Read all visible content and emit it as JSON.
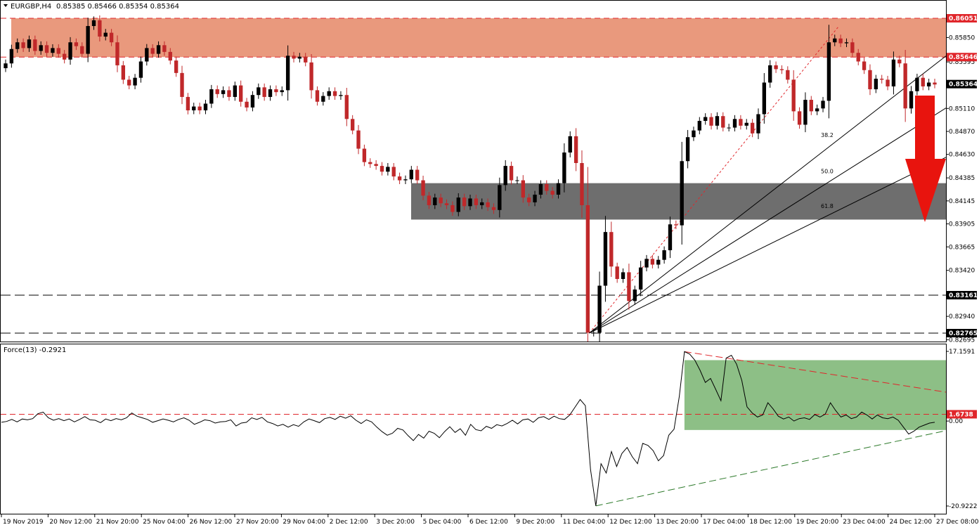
{
  "header": {
    "symbol": "EURGBP,H4",
    "ohlc": "0.85385 0.85466 0.85354 0.85364"
  },
  "indicator": {
    "label": "Force(13) -0.2921"
  },
  "colors": {
    "bull": "#000000",
    "bear": "#c0282a",
    "resistance_zone": "#e9997d",
    "support_zone": "#6e6e6e",
    "force_zone": "#8dbf86",
    "arrow": "#e8140e",
    "red_line": "#e0262b",
    "green_line": "#2d7a2a"
  },
  "chart_data": [
    {
      "type": "candlestick",
      "title": "EURGBP,H4",
      "ylim": [
        0.82695,
        0.863
      ],
      "price_ticks": [
        "0.85850",
        "0.85595",
        "0.85110",
        "0.84870",
        "0.84630",
        "0.84385",
        "0.84145",
        "0.83905",
        "0.83665",
        "0.83420",
        "0.82940",
        "0.82695"
      ],
      "highlighted_levels": [
        {
          "label": "0.86051",
          "value": 0.86051,
          "color": "#e0262b"
        },
        {
          "label": "0.85646",
          "value": 0.85646,
          "color": "#e0262b"
        },
        {
          "label": "0.85364",
          "value": 0.85364,
          "color": "#000000"
        },
        {
          "label": "0.83161",
          "value": 0.83161,
          "color": "#000000"
        },
        {
          "label": "0.82765",
          "value": 0.82765,
          "color": "#000000"
        }
      ],
      "zones": [
        {
          "name": "resistance",
          "from": 0.85646,
          "to": 0.86051
        },
        {
          "name": "support",
          "from": 0.8395,
          "to": 0.8433
        }
      ],
      "fibonacci_fan": [
        {
          "label": "38.2",
          "value": 0.8479
        },
        {
          "label": "50.0",
          "value": 0.8441
        },
        {
          "label": "61.8",
          "value": 0.8405
        }
      ],
      "x_labels": [
        "19 Nov 2019",
        "20 Nov 12:00",
        "21 Nov 20:00",
        "25 Nov 04:00",
        "26 Nov 12:00",
        "27 Nov 20:00",
        "29 Nov 04:00",
        "2 Dec 12:00",
        "3 Dec 20:00",
        "5 Dec 04:00",
        "6 Dec 12:00",
        "9 Dec 20:00",
        "11 Dec 04:00",
        "12 Dec 12:00",
        "13 Dec 20:00",
        "17 Dec 04:00",
        "18 Dec 12:00",
        "19 Dec 20:00",
        "23 Dec 04:00",
        "24 Dec 12:00",
        "27 Dec 08:00"
      ],
      "close": [
        0.8558,
        0.8573,
        0.858,
        0.8574,
        0.8583,
        0.8571,
        0.8577,
        0.8569,
        0.8574,
        0.8568,
        0.8562,
        0.858,
        0.8576,
        0.8568,
        0.8597,
        0.8603,
        0.8586,
        0.859,
        0.858,
        0.8556,
        0.8541,
        0.8535,
        0.8543,
        0.856,
        0.8574,
        0.8568,
        0.8577,
        0.857,
        0.8561,
        0.8548,
        0.8523,
        0.8509,
        0.8513,
        0.8509,
        0.8516,
        0.8531,
        0.8526,
        0.853,
        0.8523,
        0.8535,
        0.8518,
        0.8512,
        0.8525,
        0.8533,
        0.8523,
        0.8531,
        0.8528,
        0.853,
        0.8566,
        0.8563,
        0.8565,
        0.8559,
        0.853,
        0.8518,
        0.8524,
        0.8529,
        0.8524,
        0.8525,
        0.85,
        0.8488,
        0.8469,
        0.8455,
        0.8453,
        0.8451,
        0.8445,
        0.845,
        0.844,
        0.8436,
        0.8437,
        0.8447,
        0.8436,
        0.842,
        0.841,
        0.8418,
        0.8412,
        0.841,
        0.8403,
        0.8418,
        0.8409,
        0.8417,
        0.841,
        0.8413,
        0.8408,
        0.8405,
        0.8431,
        0.8451,
        0.8436,
        0.8436,
        0.8418,
        0.8413,
        0.8421,
        0.8432,
        0.8425,
        0.8421,
        0.8433,
        0.8465,
        0.8482,
        0.8454,
        0.841,
        0.8277,
        0.8277,
        0.8326,
        0.8382,
        0.8346,
        0.8333,
        0.834,
        0.831,
        0.8322,
        0.8345,
        0.8354,
        0.8348,
        0.8353,
        0.8363,
        0.839,
        0.8389,
        0.8456,
        0.8481,
        0.8488,
        0.8498,
        0.8502,
        0.8493,
        0.8503,
        0.8491,
        0.8491,
        0.85,
        0.8493,
        0.8496,
        0.8485,
        0.8505,
        0.8538,
        0.8556,
        0.8552,
        0.8551,
        0.8541,
        0.8508,
        0.8494,
        0.852,
        0.8508,
        0.8511,
        0.8519,
        0.858,
        0.8584,
        0.8579,
        0.858,
        0.8569,
        0.856,
        0.8551,
        0.8531,
        0.8542,
        0.8541,
        0.8534,
        0.8562,
        0.8558,
        0.8511,
        0.8529,
        0.8543,
        0.8534,
        0.8538,
        0.8536
      ]
    },
    {
      "type": "line",
      "title": "Force(13) -0.2921",
      "ylim": [
        -20.9222,
        17.1591
      ],
      "ticks": [
        "17.1591",
        "0.00",
        "-20.9222"
      ],
      "highlighted_levels": [
        {
          "label": "1.6738",
          "value": 1.6738,
          "color": "#e0262b"
        }
      ],
      "zone": {
        "from": -2.2,
        "to": 15.0
      },
      "values": [
        -0.3,
        -0.1,
        0.4,
        -0.2,
        0.5,
        0.3,
        0.6,
        1.8,
        2.2,
        0.8,
        0.2,
        0.6,
        0.1,
        0.5,
        -0.2,
        0.4,
        1.1,
        0.3,
        0.2,
        -0.4,
        0.5,
        0.1,
        0.6,
        0.3,
        0.8,
        2.0,
        1.2,
        0.8,
        0.4,
        -0.3,
        0.1,
        0.5,
        0.2,
        -0.2,
        0.4,
        0.8,
        0.2,
        -0.8,
        -0.3,
        0.3,
        0.1,
        -0.5,
        -0.2,
        -0.1,
        0.3,
        -1.2,
        -0.5,
        -0.3,
        0.8,
        0.4,
        0.9,
        -0.2,
        -0.6,
        -1.2,
        -0.8,
        -1.5,
        -0.9,
        -1.3,
        -0.2,
        0.5,
        0.1,
        -0.4,
        0.6,
        0.9,
        0.4,
        1.2,
        0.7,
        1.3,
        0.2,
        -0.6,
        0.3,
        -0.2,
        -1.5,
        -2.6,
        -3.5,
        -3.0,
        -1.8,
        -2.2,
        -3.6,
        -4.8,
        -3.3,
        -4.2,
        -2.5,
        -3.0,
        -4.1,
        -2.6,
        -1.4,
        -2.8,
        -1.9,
        -3.5,
        -0.8,
        -2.1,
        -2.4,
        -1.3,
        -1.8,
        -0.9,
        -1.2,
        -0.6,
        0.2,
        -0.7,
        0.3,
        0.5,
        -0.3,
        0.8,
        1.1,
        0.4,
        1.2,
        0.6,
        0.4,
        1.5,
        3.4,
        5.3,
        3.8,
        -12.0,
        -20.9,
        -10.5,
        -12.8,
        -7.5,
        -11.2,
        -8.0,
        -6.5,
        -8.8,
        -10.5,
        -5.5,
        -6.0,
        -7.3,
        -9.8,
        -8.5,
        -3.5,
        -2.0,
        6.0,
        17.1,
        16.5,
        15.0,
        12.5,
        9.5,
        10.5,
        7.8,
        5.0,
        15.5,
        16.2,
        14.0,
        10.0,
        3.5,
        2.0,
        1.0,
        1.5,
        4.5,
        3.0,
        1.2,
        0.5,
        1.0,
        0.0,
        0.6,
        0.8,
        0.4,
        1.6,
        1.0,
        1.7,
        4.5,
        2.6,
        1.0,
        1.5,
        0.6,
        1.0,
        2.2,
        1.5,
        0.5,
        1.5,
        0.8,
        0.6,
        1.0,
        0.2,
        -1.5,
        -3.2,
        -2.5,
        -1.5,
        -1.0,
        -0.5,
        -0.3
      ]
    }
  ]
}
